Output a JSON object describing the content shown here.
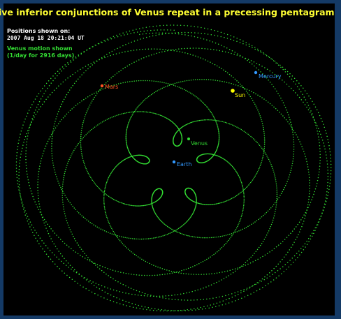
{
  "title": "Five inferior conjunctions of Venus repeat in a precessing pentagram",
  "positions_label": "Positions shown on:",
  "timestamp": "2007 Aug 18 20:21:04 UT",
  "venus_motion_label": "Venus motion shown",
  "venus_motion_sub": "(1/day for 2916 days)",
  "bodies": {
    "sun": "Sun",
    "mercury": "Mercury",
    "venus": "Venus",
    "earth": "Earth",
    "mars": "Mars"
  },
  "colors": {
    "frame": "#143a66",
    "background": "#000000",
    "title": "#ffff33",
    "trail": "#33dd33",
    "positions_text": "#ffffff",
    "motion_text": "#33dd33",
    "sun": "#ffff00",
    "mercury": "#3399ff",
    "venus": "#33dd33",
    "earth": "#3399ff",
    "mars": "#ff5522"
  }
}
